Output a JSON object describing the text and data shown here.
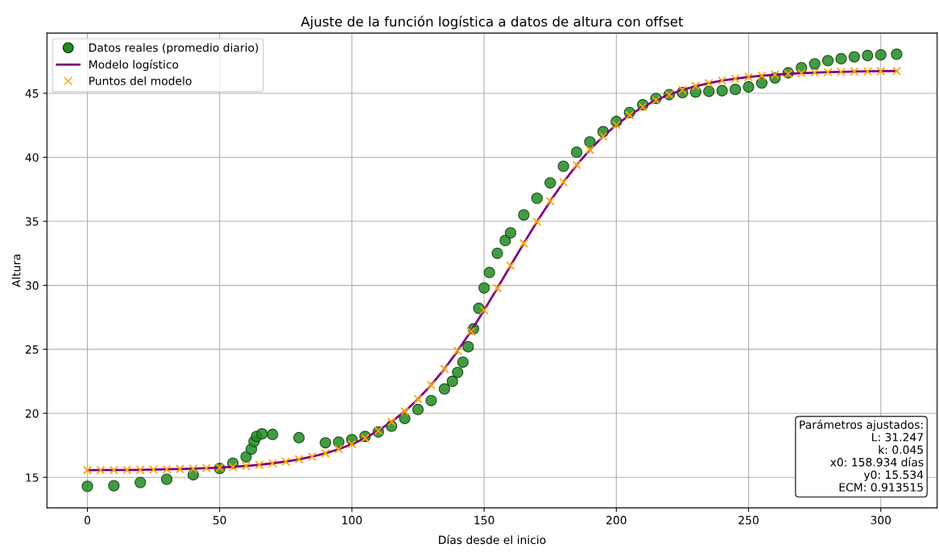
{
  "chart_data": {
    "type": "scatter",
    "title": "Ajuste de la función logística a datos de altura con offset",
    "xlabel": "Días desde el inicio",
    "ylabel": "Altura",
    "xlim": [
      -15.3,
      321.3
    ],
    "ylim": [
      12.62,
      49.7
    ],
    "xticks": [
      0,
      50,
      100,
      150,
      200,
      250,
      300
    ],
    "yticks": [
      15,
      20,
      25,
      30,
      35,
      40,
      45
    ],
    "grid": true,
    "legend": "top left",
    "series": [
      {
        "name": "Datos reales (promedio diario)",
        "marker": "circle",
        "color": "#228b22",
        "x": [
          0,
          10,
          20,
          30,
          40,
          50,
          55,
          60,
          62,
          63,
          64,
          66,
          70,
          80,
          90,
          95,
          100,
          105,
          110,
          115,
          120,
          125,
          130,
          135,
          138,
          140,
          142,
          144,
          146,
          148,
          150,
          152,
          155,
          158,
          160,
          165,
          170,
          175,
          180,
          185,
          190,
          195,
          200,
          205,
          210,
          215,
          220,
          225,
          230,
          235,
          240,
          245,
          250,
          255,
          260,
          265,
          270,
          275,
          280,
          285,
          290,
          295,
          300,
          306
        ],
        "values": [
          14.3,
          14.35,
          14.6,
          14.85,
          15.2,
          15.7,
          16.1,
          16.6,
          17.2,
          17.8,
          18.2,
          18.4,
          18.35,
          18.1,
          17.7,
          17.75,
          17.95,
          18.2,
          18.55,
          19.0,
          19.6,
          20.3,
          21.0,
          21.9,
          22.5,
          23.2,
          24.0,
          25.2,
          26.6,
          28.2,
          29.8,
          31.0,
          32.5,
          33.5,
          34.1,
          35.5,
          36.8,
          38.0,
          39.3,
          40.4,
          41.2,
          42.0,
          42.8,
          43.5,
          44.1,
          44.6,
          44.9,
          45.05,
          45.1,
          45.15,
          45.2,
          45.3,
          45.5,
          45.8,
          46.2,
          46.6,
          47.0,
          47.3,
          47.55,
          47.7,
          47.85,
          47.95,
          48.0,
          48.05
        ]
      },
      {
        "name": "Modelo logístico",
        "type": "line",
        "marker": "none",
        "line_style": "solid",
        "color": "#800080",
        "x": [
          0,
          5,
          10,
          15,
          20,
          25,
          30,
          35,
          40,
          45,
          50,
          55,
          60,
          65,
          70,
          75,
          80,
          85,
          90,
          95,
          100,
          105,
          110,
          115,
          120,
          125,
          130,
          135,
          140,
          145,
          150,
          155,
          160,
          165,
          170,
          175,
          180,
          185,
          190,
          195,
          200,
          205,
          210,
          215,
          220,
          225,
          230,
          235,
          240,
          245,
          250,
          255,
          260,
          265,
          270,
          275,
          280,
          285,
          290,
          295,
          300,
          306
        ],
        "values": [
          15.56,
          15.57,
          15.57,
          15.58,
          15.59,
          15.61,
          15.63,
          15.65,
          15.68,
          15.72,
          15.76,
          15.82,
          15.89,
          15.98,
          16.1,
          16.23,
          16.41,
          16.62,
          16.88,
          17.2,
          17.59,
          18.07,
          18.65,
          19.34,
          20.15,
          21.11,
          22.22,
          23.47,
          24.88,
          26.41,
          28.06,
          29.78,
          31.53,
          33.28,
          34.97,
          36.57,
          38.05,
          39.4,
          40.59,
          41.63,
          42.53,
          43.29,
          43.93,
          44.46,
          44.9,
          45.26,
          45.56,
          45.79,
          45.99,
          46.14,
          46.27,
          46.37,
          46.45,
          46.52,
          46.57,
          46.61,
          46.65,
          46.67,
          46.7,
          46.71,
          46.73,
          46.74
        ]
      },
      {
        "name": "Puntos del modelo",
        "marker": "cross",
        "color": "#ffa500",
        "x": [
          0,
          5,
          10,
          15,
          20,
          25,
          30,
          35,
          40,
          45,
          50,
          55,
          60,
          65,
          70,
          75,
          80,
          85,
          90,
          95,
          100,
          105,
          110,
          115,
          120,
          125,
          130,
          135,
          140,
          145,
          150,
          155,
          160,
          165,
          170,
          175,
          180,
          185,
          190,
          195,
          200,
          205,
          210,
          215,
          220,
          225,
          230,
          235,
          240,
          245,
          250,
          255,
          260,
          265,
          270,
          275,
          280,
          285,
          290,
          295,
          300,
          306
        ],
        "values": [
          15.56,
          15.57,
          15.57,
          15.58,
          15.59,
          15.61,
          15.63,
          15.65,
          15.68,
          15.72,
          15.76,
          15.82,
          15.89,
          15.98,
          16.1,
          16.23,
          16.41,
          16.62,
          16.88,
          17.2,
          17.59,
          18.07,
          18.65,
          19.34,
          20.15,
          21.11,
          22.22,
          23.47,
          24.88,
          26.41,
          28.06,
          29.78,
          31.53,
          33.28,
          34.97,
          36.57,
          38.05,
          39.4,
          40.59,
          41.63,
          42.53,
          43.29,
          43.93,
          44.46,
          44.9,
          45.26,
          45.56,
          45.79,
          45.99,
          46.14,
          46.27,
          46.37,
          46.45,
          46.52,
          46.57,
          46.61,
          46.65,
          46.67,
          46.7,
          46.71,
          46.73,
          46.74
        ]
      }
    ],
    "annotations": [
      "Parámetros ajustados:\nL: 31.247\nk: 0.045\nx0: 158.934 días\ny0: 15.534\nECM: 0.913515"
    ]
  }
}
